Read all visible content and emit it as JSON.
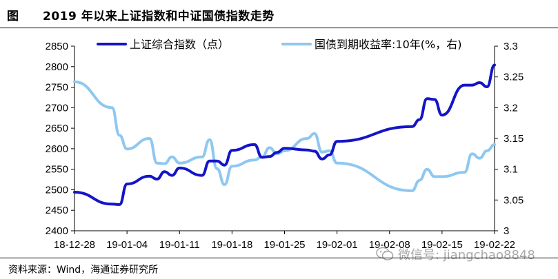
{
  "header": {
    "prefix": "图",
    "title": "2019 年以来上证指数和中证国债指数走势"
  },
  "source": {
    "text": "资料来源：Wind，海通证券研究所"
  },
  "watermark": {
    "text": "微信号: jiangchao8848",
    "icon": "wechat-icon"
  },
  "colors": {
    "series_dark": "#1414c8",
    "series_light": "#8ec8f0"
  },
  "chart_data": {
    "type": "line",
    "x_tick_labels": [
      "18-12-28",
      "19-01-04",
      "19-01-11",
      "19-01-18",
      "19-01-25",
      "19-02-01",
      "19-02-08",
      "19-02-15",
      "19-02-22"
    ],
    "left_axis": {
      "ylim": [
        2400,
        2850
      ],
      "ticks": [
        2400,
        2450,
        2500,
        2550,
        2600,
        2650,
        2700,
        2750,
        2800,
        2850
      ]
    },
    "right_axis": {
      "ylim": [
        3.0,
        3.3
      ],
      "ticks": [
        "3",
        "3.05",
        "3.1",
        "3.15",
        "3.2",
        "3.25",
        "3.3"
      ]
    },
    "legend_placement": "top",
    "grid": false,
    "series": [
      {
        "name": "上证综合指数（点）",
        "axis": "left",
        "color": "#1414c8",
        "points": [
          [
            "18-12-28",
            2494
          ],
          [
            "19-01-02",
            2465
          ],
          [
            "19-01-03",
            2464
          ],
          [
            "19-01-04",
            2514
          ],
          [
            "19-01-07",
            2533
          ],
          [
            "19-01-08",
            2526
          ],
          [
            "19-01-09",
            2544
          ],
          [
            "19-01-10",
            2535
          ],
          [
            "19-01-11",
            2553
          ],
          [
            "19-01-14",
            2535
          ],
          [
            "19-01-15",
            2570
          ],
          [
            "19-01-16",
            2570
          ],
          [
            "19-01-17",
            2560
          ],
          [
            "19-01-18",
            2596
          ],
          [
            "19-01-21",
            2610
          ],
          [
            "19-01-22",
            2579
          ],
          [
            "19-01-23",
            2581
          ],
          [
            "19-01-24",
            2591
          ],
          [
            "19-01-25",
            2601
          ],
          [
            "19-01-28",
            2597
          ],
          [
            "19-01-29",
            2594
          ],
          [
            "19-01-30",
            2575
          ],
          [
            "19-01-31",
            2585
          ],
          [
            "19-02-01",
            2618
          ],
          [
            "19-02-11",
            2654
          ],
          [
            "19-02-12",
            2671
          ],
          [
            "19-02-13",
            2722
          ],
          [
            "19-02-14",
            2720
          ],
          [
            "19-02-15",
            2682
          ],
          [
            "19-02-18",
            2755
          ],
          [
            "19-02-19",
            2755
          ],
          [
            "19-02-20",
            2761
          ],
          [
            "19-02-21",
            2751
          ],
          [
            "19-02-22",
            2804
          ]
        ]
      },
      {
        "name": "国债到期收益率:10年(%，右)",
        "axis": "right",
        "color": "#8ec8f0",
        "points": [
          [
            "18-12-28",
            3.242
          ],
          [
            "19-01-02",
            3.2
          ],
          [
            "19-01-03",
            3.155
          ],
          [
            "19-01-04",
            3.133
          ],
          [
            "19-01-07",
            3.15
          ],
          [
            "19-01-08",
            3.11
          ],
          [
            "19-01-09",
            3.109
          ],
          [
            "19-01-10",
            3.12
          ],
          [
            "19-01-11",
            3.11
          ],
          [
            "19-01-14",
            3.12
          ],
          [
            "19-01-15",
            3.148
          ],
          [
            "19-01-16",
            3.101
          ],
          [
            "19-01-17",
            3.075
          ],
          [
            "19-01-18",
            3.105
          ],
          [
            "19-01-21",
            3.115
          ],
          [
            "19-01-22",
            3.12
          ],
          [
            "19-01-23",
            3.135
          ],
          [
            "19-01-24",
            3.125
          ],
          [
            "19-01-25",
            3.13
          ],
          [
            "19-01-28",
            3.15
          ],
          [
            "19-01-29",
            3.158
          ],
          [
            "19-01-30",
            3.128
          ],
          [
            "19-01-31",
            3.13
          ],
          [
            "19-02-01",
            3.11
          ],
          [
            "19-02-11",
            3.065
          ],
          [
            "19-02-12",
            3.082
          ],
          [
            "19-02-13",
            3.1
          ],
          [
            "19-02-14",
            3.088
          ],
          [
            "19-02-15",
            3.088
          ],
          [
            "19-02-18",
            3.095
          ],
          [
            "19-02-19",
            3.125
          ],
          [
            "19-02-20",
            3.118
          ],
          [
            "19-02-21",
            3.13
          ],
          [
            "19-02-22",
            3.14
          ]
        ]
      }
    ]
  }
}
